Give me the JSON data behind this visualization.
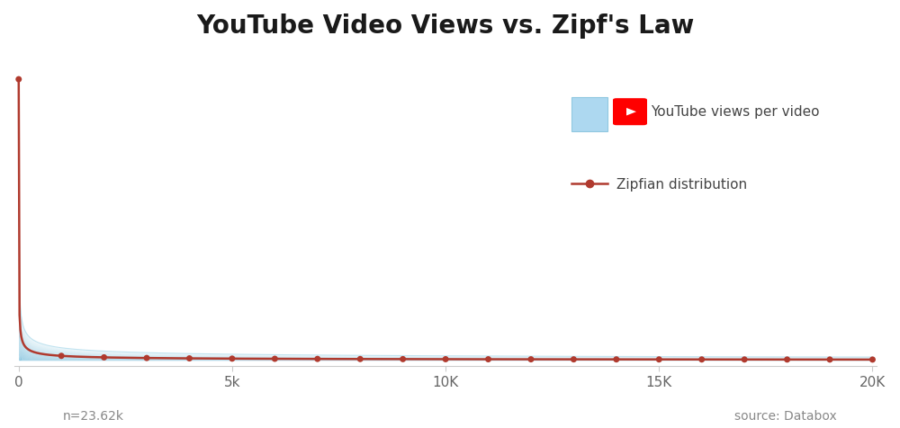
{
  "title": "YouTube Video Views vs. Zipf's Law",
  "title_fontsize": 20,
  "title_fontweight": "bold",
  "x_max": 20000,
  "x_ticks": [
    0,
    5000,
    10000,
    15000,
    20000
  ],
  "x_tick_labels": [
    "0",
    "5k",
    "10K",
    "15K",
    "20K"
  ],
  "n_points": 1000,
  "dot_ranks": [
    1,
    1000,
    2000,
    3000,
    4000,
    5000,
    6000,
    7000,
    8000,
    9000,
    10000,
    11000,
    12000,
    13000,
    14000,
    15000,
    16000,
    17000,
    18000,
    19000,
    20000
  ],
  "fill_color_top": "#7EC8E3",
  "fill_color_bottom": "#D6EEF8",
  "fill_alpha": 1.0,
  "line_color": "#B03A2E",
  "dot_color": "#B03A2E",
  "dot_size": 5,
  "line_width": 1.8,
  "background_color": "#FFFFFF",
  "annotation_n": "n=23.62k",
  "annotation_source": "source: Databox",
  "annotation_fontsize": 10,
  "annotation_color": "#888888",
  "legend_label_1": "YouTube views per video",
  "legend_label_2": "Zipfian distribution",
  "legend_fontsize": 11,
  "legend_color": "#444444",
  "axis_label_color": "#666666",
  "axis_tick_fontsize": 11,
  "youtube_icon_color": "#FF0000",
  "spine_color": "#CCCCCC",
  "zipf_exponent": 0.6,
  "blue_exponent": 0.45
}
